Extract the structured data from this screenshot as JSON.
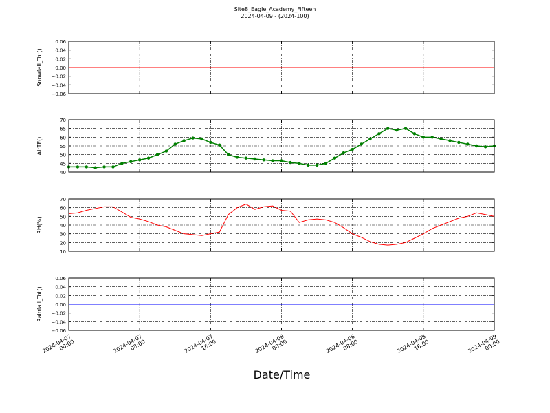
{
  "title": "Site8_Eagle_Academy_Fifteen",
  "subtitle": "2024-04-09 - (2024-100)",
  "chart_data": [
    {
      "type": "line",
      "ylabel": "Snowfall_Tot()",
      "color": "#ff0000",
      "x": [
        "2024-04-07 00:00",
        "2024-04-09 00:00"
      ],
      "values": [
        0,
        0
      ],
      "ylim": [
        -0.06,
        0.06
      ],
      "yticks": [
        {
          "value": -0.06,
          "label": "−0.06"
        },
        {
          "value": -0.04,
          "label": "−0.04"
        },
        {
          "value": -0.02,
          "label": "−0.02"
        },
        {
          "value": 0,
          "label": "0.00"
        },
        0.02,
        0.04,
        0.06
      ],
      "grid": true
    },
    {
      "type": "line",
      "ylabel": "AirTF()",
      "color": "#008000",
      "markers": true,
      "x": [
        "2024-04-07 00:00",
        "2024-04-07 01:00",
        "2024-04-07 02:00",
        "2024-04-07 03:00",
        "2024-04-07 04:00",
        "2024-04-07 05:00",
        "2024-04-07 06:00",
        "2024-04-07 07:00",
        "2024-04-07 08:00",
        "2024-04-07 09:00",
        "2024-04-07 10:00",
        "2024-04-07 11:00",
        "2024-04-07 12:00",
        "2024-04-07 13:00",
        "2024-04-07 14:00",
        "2024-04-07 15:00",
        "2024-04-07 16:00",
        "2024-04-07 17:00",
        "2024-04-07 18:00",
        "2024-04-07 19:00",
        "2024-04-07 20:00",
        "2024-04-07 21:00",
        "2024-04-07 22:00",
        "2024-04-07 23:00",
        "2024-04-08 00:00",
        "2024-04-08 01:00",
        "2024-04-08 02:00",
        "2024-04-08 03:00",
        "2024-04-08 04:00",
        "2024-04-08 05:00",
        "2024-04-08 06:00",
        "2024-04-08 07:00",
        "2024-04-08 08:00",
        "2024-04-08 09:00",
        "2024-04-08 10:00",
        "2024-04-08 11:00",
        "2024-04-08 12:00",
        "2024-04-08 13:00",
        "2024-04-08 14:00",
        "2024-04-08 15:00",
        "2024-04-08 16:00",
        "2024-04-08 17:00",
        "2024-04-08 18:00",
        "2024-04-08 19:00",
        "2024-04-08 20:00",
        "2024-04-08 21:00",
        "2024-04-08 22:00",
        "2024-04-08 23:00",
        "2024-04-09 00:00"
      ],
      "values": [
        43,
        43,
        43,
        42.5,
        43,
        43,
        45,
        46,
        47,
        48,
        50,
        52,
        56,
        58,
        59.5,
        59,
        57,
        55.5,
        50,
        48.5,
        48,
        47.5,
        47,
        46.5,
        46.5,
        45.5,
        45,
        44,
        44,
        45,
        48,
        51,
        53,
        56,
        59,
        62,
        65,
        64,
        65,
        62,
        60,
        60,
        59,
        58,
        57,
        56,
        55,
        54.5,
        55
      ],
      "ylim": [
        40,
        70
      ],
      "yticks": [
        40,
        45,
        50,
        55,
        60,
        65,
        70
      ],
      "grid": true
    },
    {
      "type": "line",
      "ylabel": "RH(%)",
      "color": "#ff0000",
      "x": [
        "2024-04-07 00:00",
        "2024-04-07 01:00",
        "2024-04-07 02:00",
        "2024-04-07 03:00",
        "2024-04-07 04:00",
        "2024-04-07 05:00",
        "2024-04-07 06:00",
        "2024-04-07 07:00",
        "2024-04-07 08:00",
        "2024-04-07 09:00",
        "2024-04-07 10:00",
        "2024-04-07 11:00",
        "2024-04-07 12:00",
        "2024-04-07 13:00",
        "2024-04-07 14:00",
        "2024-04-07 15:00",
        "2024-04-07 16:00",
        "2024-04-07 17:00",
        "2024-04-07 18:00",
        "2024-04-07 19:00",
        "2024-04-07 20:00",
        "2024-04-07 21:00",
        "2024-04-07 22:00",
        "2024-04-07 23:00",
        "2024-04-08 00:00",
        "2024-04-08 01:00",
        "2024-04-08 02:00",
        "2024-04-08 03:00",
        "2024-04-08 04:00",
        "2024-04-08 05:00",
        "2024-04-08 06:00",
        "2024-04-08 07:00",
        "2024-04-08 08:00",
        "2024-04-08 09:00",
        "2024-04-08 10:00",
        "2024-04-08 11:00",
        "2024-04-08 12:00",
        "2024-04-08 13:00",
        "2024-04-08 14:00",
        "2024-04-08 15:00",
        "2024-04-08 16:00",
        "2024-04-08 17:00",
        "2024-04-08 18:00",
        "2024-04-08 19:00",
        "2024-04-08 20:00",
        "2024-04-08 21:00",
        "2024-04-08 22:00",
        "2024-04-08 23:00",
        "2024-04-09 00:00"
      ],
      "values": [
        53,
        54,
        57,
        59,
        61,
        61,
        55,
        49,
        47,
        44,
        40,
        38,
        34,
        30,
        29,
        28,
        30,
        32,
        52,
        60,
        64,
        58,
        61,
        62,
        57,
        56,
        43,
        46,
        47,
        46,
        43,
        37,
        30,
        26,
        21,
        18,
        17,
        18,
        20,
        25,
        30,
        36,
        40,
        44,
        48,
        50,
        54,
        52,
        50
      ],
      "ylim": [
        10,
        70
      ],
      "yticks": [
        10,
        20,
        30,
        40,
        50,
        60,
        70
      ],
      "grid": true
    },
    {
      "type": "line",
      "ylabel": "Rainfall_Tot()",
      "xlabel": "Date/Time",
      "color": "#0000ff",
      "x": [
        "2024-04-07 00:00",
        "2024-04-09 00:00"
      ],
      "values": [
        0,
        0
      ],
      "ylim": [
        -0.06,
        0.06
      ],
      "yticks": [
        {
          "value": -0.06,
          "label": "−0.06"
        },
        {
          "value": -0.04,
          "label": "−0.04"
        },
        {
          "value": -0.02,
          "label": "−0.02"
        },
        {
          "value": 0,
          "label": "0.00"
        },
        0.02,
        0.04,
        0.06
      ],
      "xlim": [
        "2024-04-07 00:00",
        "2024-04-09 00:00"
      ],
      "xticks": [
        {
          "value": "2024-04-07 00:00",
          "label": [
            "2024-04-07",
            "00:00"
          ]
        },
        {
          "value": "2024-04-07 08:00",
          "label": [
            "2024-04-07",
            "08:00"
          ]
        },
        {
          "value": "2024-04-07 16:00",
          "label": [
            "2024-04-07",
            "16:00"
          ]
        },
        {
          "value": "2024-04-08 00:00",
          "label": [
            "2024-04-08",
            "00:00"
          ]
        },
        {
          "value": "2024-04-08 08:00",
          "label": [
            "2024-04-08",
            "08:00"
          ]
        },
        {
          "value": "2024-04-08 16:00",
          "label": [
            "2024-04-08",
            "16:00"
          ]
        },
        {
          "value": "2024-04-09 00:00",
          "label": [
            "2024-04-09",
            "00:00"
          ]
        }
      ],
      "grid": true
    }
  ]
}
